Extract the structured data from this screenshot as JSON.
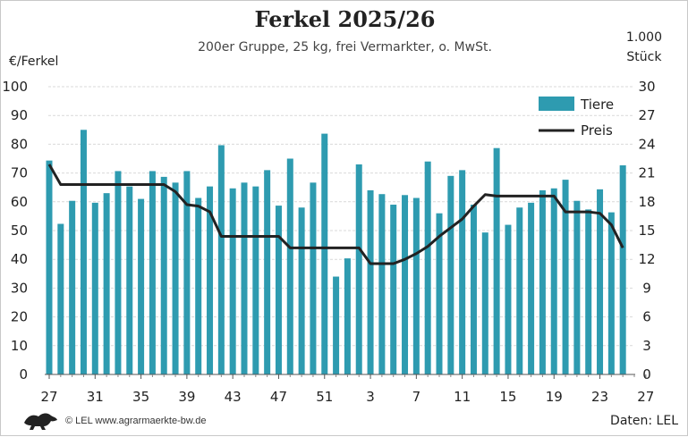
{
  "title": "Ferkel 2025/26",
  "subtitle": "200er Gruppe, 25 kg, frei Vermarkter, o. MwSt.",
  "left_axis_label": "€/Ferkel",
  "right_axis_label_line1": "1.000",
  "right_axis_label_line2": "Stück",
  "footer_source": "© LEL www.agrarmaerkte-bw.de",
  "footer_data": "Daten: LEL",
  "logo": "lion-logo-icon",
  "colors": {
    "bars": "#2e9bb0",
    "line": "#222222",
    "grid": "#d9d9d9"
  },
  "chart_data": {
    "type": "bar",
    "title": "Ferkel 2025/26",
    "subtitle": "200er Gruppe, 25 kg, frei Vermarkter, o. MwSt.",
    "x_tick_labels": [
      "27",
      "31",
      "35",
      "39",
      "43",
      "47",
      "51",
      "3",
      "7",
      "11",
      "15",
      "19",
      "23",
      "27"
    ],
    "x": [
      27,
      28,
      29,
      30,
      31,
      32,
      33,
      34,
      35,
      36,
      37,
      38,
      39,
      40,
      41,
      42,
      43,
      44,
      45,
      46,
      47,
      48,
      49,
      50,
      51,
      52,
      1,
      2,
      3,
      4,
      5,
      6,
      7,
      8,
      9,
      10,
      11,
      12,
      13,
      14,
      15,
      16,
      17,
      18,
      19,
      20,
      21,
      22,
      23,
      24,
      25
    ],
    "y_left": {
      "label": "€/Ferkel",
      "lim": [
        0,
        100
      ],
      "ticks": [
        0,
        10,
        20,
        30,
        40,
        50,
        60,
        70,
        80,
        90,
        100
      ]
    },
    "y_right": {
      "label": "1.000 Stück",
      "lim": [
        0,
        30
      ],
      "ticks": [
        0,
        3,
        6,
        9,
        12,
        15,
        18,
        21,
        24,
        27,
        30
      ]
    },
    "grid": true,
    "legend": "top-right",
    "series": [
      {
        "name": "Tiere",
        "type": "bar",
        "axis": "right",
        "values": [
          22.3,
          15.7,
          18.1,
          25.5,
          17.9,
          18.9,
          21.2,
          19.6,
          18.3,
          21.2,
          20.6,
          20.0,
          21.2,
          18.4,
          19.6,
          23.9,
          19.4,
          20.0,
          19.6,
          21.3,
          17.6,
          22.5,
          17.4,
          20.0,
          25.1,
          10.2,
          12.1,
          21.9,
          19.2,
          18.8,
          17.7,
          18.7,
          18.4,
          22.2,
          16.8,
          20.7,
          21.3,
          17.7,
          14.8,
          23.6,
          15.6,
          17.4,
          17.9,
          19.2,
          19.4,
          20.3,
          18.1,
          17.2,
          19.3,
          16.9,
          21.8
        ]
      },
      {
        "name": "Preis",
        "type": "line",
        "axis": "left",
        "values": [
          73.0,
          66.0,
          66.0,
          66.0,
          66.0,
          66.0,
          66.0,
          66.0,
          66.0,
          66.0,
          66.0,
          63.5,
          59.0,
          58.5,
          56.5,
          48.0,
          48.0,
          48.0,
          48.0,
          48.0,
          48.0,
          44.0,
          44.0,
          44.0,
          44.0,
          44.0,
          44.0,
          44.0,
          38.5,
          38.5,
          38.5,
          40.0,
          42.0,
          44.5,
          48.0,
          51.0,
          54.0,
          58.5,
          62.5,
          62.0,
          62.0,
          62.0,
          62.0,
          62.0,
          62.0,
          56.5,
          56.5,
          56.5,
          56.0,
          52.0,
          44.0
        ]
      }
    ]
  }
}
